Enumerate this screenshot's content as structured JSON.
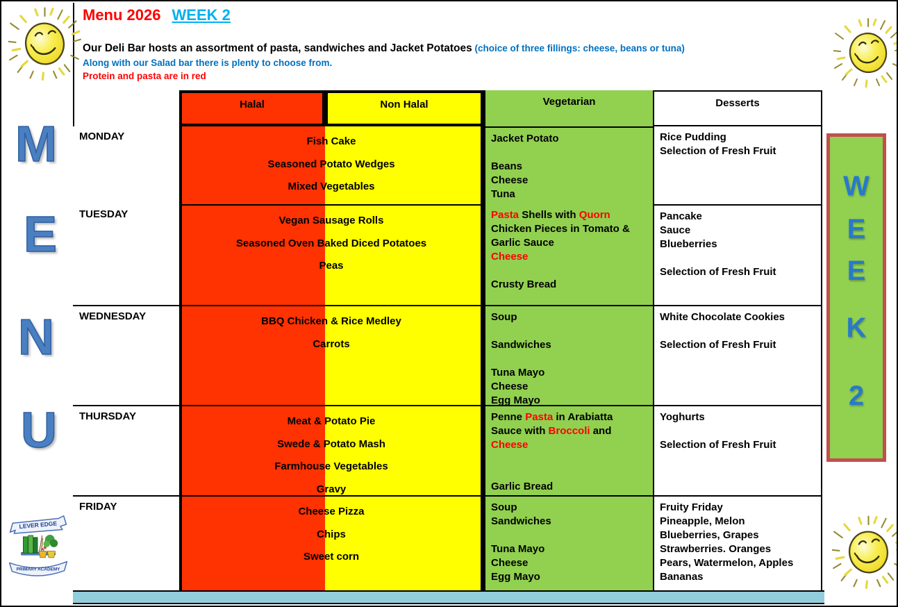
{
  "header": {
    "title": "Menu 2026",
    "week_label": "WEEK 2",
    "deli_line_main": "Our Deli Bar hosts an assortment of pasta, sandwiches and Jacket Potatoes",
    "deli_line_note": " (choice of three fillings: cheese, beans or tuna)",
    "salad_line": "Along with our Salad bar there is plenty to choose from.",
    "protein_line": "Protein and pasta are in red"
  },
  "side": {
    "menu_vertical": [
      "M",
      "E",
      "N",
      "U"
    ],
    "week_vertical": [
      "W",
      "E",
      "E",
      "K",
      "2"
    ],
    "logo_top": "LEVER EDGE",
    "logo_bottom": "PRIMARY ACADEMY"
  },
  "colors": {
    "halal_bg": "#FF3201",
    "non_halal_bg": "#FFFF00",
    "vegetarian_bg": "#92D050",
    "desserts_bg": "#FFFFFF",
    "bottom_bar": "#92CDDC",
    "title_red": "#FF0000",
    "week_cyan": "#00B0F0",
    "note_blue": "#0070C0",
    "highlight_red": "#FF0000",
    "side_letters_blue": "#4a80c2",
    "week_box_border": "#C0504D"
  },
  "table": {
    "column_headers": [
      "Halal",
      "Non Halal",
      "Vegetarian",
      "Desserts"
    ],
    "rows": [
      {
        "day": "MONDAY",
        "main": [
          "Fish Cake",
          "Seasoned Potato Wedges",
          "Mixed Vegetables"
        ],
        "vegetarian": [
          [
            {
              "t": "Jacket Potato"
            }
          ],
          [],
          [
            {
              "t": "Beans"
            }
          ],
          [
            {
              "t": "Cheese"
            }
          ],
          [
            {
              "t": "Tuna"
            }
          ]
        ],
        "desserts": [
          "Rice Pudding",
          "Selection of Fresh Fruit"
        ]
      },
      {
        "day": "TUESDAY",
        "main": [
          "Vegan Sausage Rolls",
          "Seasoned Oven Baked Diced Potatoes",
          "Peas"
        ],
        "vegetarian": [
          [
            {
              "t": "Pasta ",
              "red": true
            },
            {
              "t": "Shells with "
            },
            {
              "t": "Quorn",
              "red": true
            }
          ],
          [
            {
              "t": "Chicken Pieces in Tomato &"
            }
          ],
          [
            {
              "t": "Garlic Sauce"
            }
          ],
          [
            {
              "t": "Cheese",
              "red": true
            }
          ],
          [],
          [
            {
              "t": "Crusty Bread"
            }
          ]
        ],
        "desserts": [
          "Pancake",
          "Sauce",
          "Blueberries",
          "",
          "Selection of Fresh Fruit"
        ]
      },
      {
        "day": "WEDNESDAY",
        "main": [
          "BBQ Chicken & Rice Medley",
          "Carrots"
        ],
        "vegetarian": [
          [
            {
              "t": "Soup"
            }
          ],
          [],
          [
            {
              "t": "Sandwiches"
            }
          ],
          [],
          [
            {
              "t": "Tuna Mayo"
            }
          ],
          [
            {
              "t": "Cheese"
            }
          ],
          [
            {
              "t": "Egg Mayo"
            }
          ]
        ],
        "desserts": [
          "White Chocolate Cookies",
          "",
          "Selection of Fresh Fruit"
        ]
      },
      {
        "day": "THURSDAY",
        "main": [
          "Meat & Potato Pie",
          "Swede & Potato Mash",
          "Farmhouse Vegetables",
          "Gravy"
        ],
        "vegetarian": [
          [
            {
              "t": "Penne "
            },
            {
              "t": "Pasta ",
              "red": true
            },
            {
              "t": "in Arabiatta"
            }
          ],
          [
            {
              "t": "Sauce with "
            },
            {
              "t": "Broccoli ",
              "red": true
            },
            {
              "t": "and"
            }
          ],
          [
            {
              "t": "Cheese",
              "red": true
            }
          ],
          [],
          [],
          [
            {
              "t": "Garlic Bread"
            }
          ]
        ],
        "desserts": [
          "Yoghurts",
          "",
          "Selection of Fresh Fruit"
        ]
      },
      {
        "day": "FRIDAY",
        "main": [
          "Cheese Pizza",
          "Chips",
          "Sweet corn"
        ],
        "vegetarian": [
          [
            {
              "t": "Soup"
            }
          ],
          [
            {
              "t": "Sandwiches"
            }
          ],
          [],
          [
            {
              "t": "Tuna Mayo"
            }
          ],
          [
            {
              "t": "Cheese"
            }
          ],
          [
            {
              "t": "Egg Mayo"
            }
          ]
        ],
        "desserts": [
          "Fruity Friday",
          "Pineapple, Melon",
          "Blueberries, Grapes",
          "Strawberries. Oranges",
          "Pears, Watermelon, Apples",
          "Bananas"
        ]
      }
    ]
  }
}
